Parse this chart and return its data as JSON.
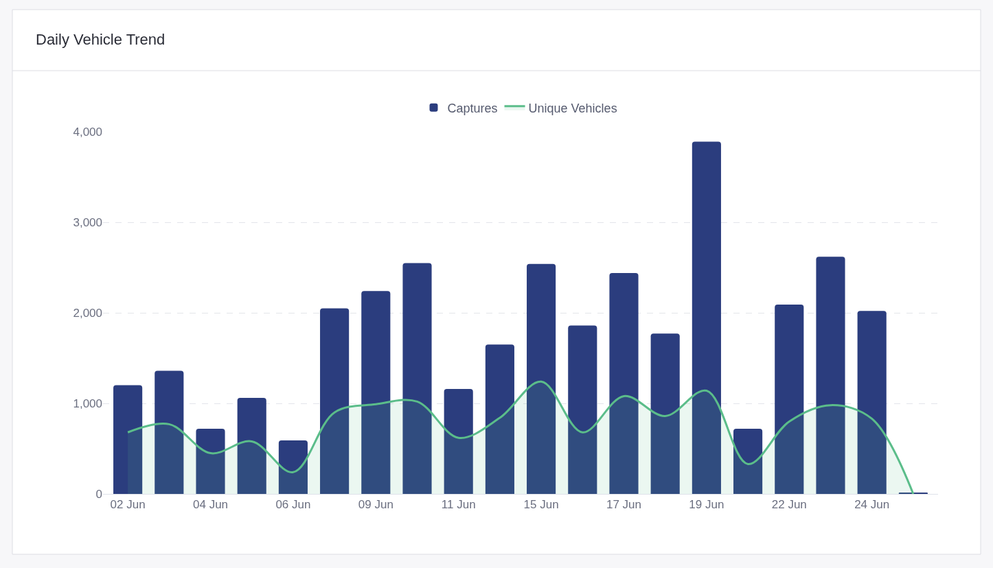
{
  "chart_data": {
    "type": "bar",
    "title": "Daily Vehicle Trend",
    "categories": [
      "02 Jun",
      null,
      "04 Jun",
      null,
      "06 Jun",
      null,
      "09 Jun",
      null,
      "11 Jun",
      null,
      "15 Jun",
      null,
      "17 Jun",
      null,
      "19 Jun",
      null,
      "22 Jun",
      null,
      "24 Jun",
      null
    ],
    "series": [
      {
        "name": "Captures",
        "color": "#2b3d7e",
        "values": [
          1200,
          1360,
          720,
          1060,
          590,
          2050,
          2240,
          2550,
          1160,
          1650,
          2540,
          1860,
          2440,
          1770,
          3890,
          720,
          2090,
          2620,
          2020,
          15
        ]
      },
      {
        "name": "Unique Vehicles",
        "type": "area",
        "color": "#5bbd8a",
        "values": [
          680,
          770,
          450,
          580,
          240,
          900,
          990,
          1020,
          620,
          840,
          1240,
          680,
          1080,
          860,
          1140,
          330,
          800,
          980,
          830,
          0
        ]
      }
    ],
    "ylim": [
      0,
      4000
    ],
    "yticks": [
      {
        "value": 0,
        "label": "0"
      },
      {
        "value": 1000,
        "label": "1,000"
      },
      {
        "value": 2000,
        "label": "2,000"
      },
      {
        "value": 3000,
        "label": "3,000"
      },
      {
        "value": 4000,
        "label": "4,000"
      }
    ],
    "grid": "y",
    "legend": "top",
    "marker": "none"
  }
}
